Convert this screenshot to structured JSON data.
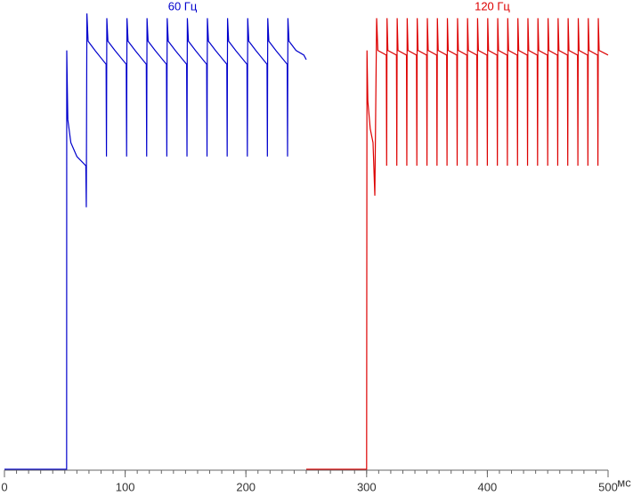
{
  "chart_data": {
    "type": "line",
    "xlabel": "мс",
    "xlim": [
      0,
      500
    ],
    "ylim": [
      0,
      100
    ],
    "xticks": [
      0,
      100,
      200,
      300,
      400,
      500
    ],
    "xminorticks": [
      0,
      10,
      20,
      30,
      40,
      50,
      60,
      70,
      80,
      90,
      100,
      110,
      120,
      130,
      140,
      150,
      160,
      170,
      180,
      190,
      200,
      210,
      220,
      230,
      240,
      250,
      260,
      270,
      280,
      290,
      300,
      310,
      320,
      330,
      340,
      350,
      360,
      370,
      380,
      390,
      400,
      410,
      420,
      430,
      440,
      450,
      460,
      470,
      480,
      490,
      500
    ],
    "series": [
      {
        "name": "60 Гц",
        "color": "#0000cc",
        "x": [
          0,
          51.5,
          51.6,
          52.5,
          55,
          60,
          67.4,
          67.8,
          68.3,
          69.3,
          75,
          84.2,
          84.5,
          84.8,
          85.7,
          91.5,
          100.9,
          101.2,
          101.5,
          102.4,
          108.2,
          117.5,
          117.8,
          118.1,
          119,
          124.8,
          134.2,
          134.5,
          134.8,
          135.7,
          141.5,
          150.9,
          151.2,
          151.5,
          152.4,
          158.2,
          167.5,
          167.8,
          168.1,
          169,
          174.8,
          184.2,
          184.5,
          184.8,
          185.7,
          191.5,
          200.9,
          201.2,
          201.5,
          202.4,
          208.2,
          217.5,
          217.8,
          218.1,
          219,
          224.8,
          234.2,
          234.5,
          234.8,
          235.7,
          241.5,
          248,
          250
        ],
        "values": [
          0.2,
          0.2,
          91,
          76,
          71,
          68,
          66,
          57,
          99,
          93,
          91,
          88,
          68,
          98,
          93,
          91,
          88,
          68,
          98,
          93,
          91,
          88,
          68,
          98,
          93,
          91,
          88,
          68,
          98,
          93,
          91,
          88,
          68,
          98,
          93,
          91,
          88,
          68,
          98,
          93,
          91,
          88,
          68,
          98,
          93,
          91,
          88,
          68,
          98,
          93,
          91,
          88,
          68,
          98,
          93,
          91,
          88,
          68,
          98,
          93,
          91,
          90,
          89
        ]
      },
      {
        "name": "120 Гц",
        "color": "#dd0000",
        "x": [
          250,
          300,
          300.3,
          301,
          303,
          305.3,
          306.8,
          308.3,
          309.3,
          316.3,
          316.6,
          316.9,
          317.6,
          324.7,
          325,
          325.3,
          326,
          333,
          333.3,
          333.6,
          334.3,
          341.3,
          341.6,
          341.9,
          342.6,
          349.7,
          350,
          350.3,
          351,
          358,
          358.3,
          358.6,
          359.3,
          366.3,
          366.6,
          366.9,
          367.6,
          374.7,
          375,
          375.3,
          376,
          383,
          383.3,
          383.6,
          384.3,
          391.3,
          391.6,
          391.9,
          392.6,
          399.7,
          400,
          400.3,
          401,
          408,
          408.3,
          408.6,
          409.3,
          416.3,
          416.6,
          416.9,
          417.6,
          424.7,
          425,
          425.3,
          426,
          433,
          433.3,
          433.6,
          434.3,
          441.3,
          441.6,
          441.9,
          442.6,
          449.7,
          450,
          450.3,
          451,
          458,
          458.3,
          458.6,
          459.3,
          466.3,
          466.6,
          466.9,
          467.6,
          474.7,
          475,
          475.3,
          476,
          483,
          483.3,
          483.6,
          484.3,
          491.3,
          491.6,
          491.9,
          492.6,
          500
        ],
        "values": [
          0.2,
          0.2,
          91,
          80,
          74,
          71,
          59.5,
          98,
          91,
          90,
          66,
          98,
          91,
          90,
          66,
          98,
          91,
          90,
          66,
          98,
          91,
          90,
          66,
          98,
          91,
          90,
          66,
          98,
          91,
          90,
          66,
          98,
          91,
          90,
          66,
          98,
          91,
          90,
          66,
          98,
          91,
          90,
          66,
          98,
          91,
          90,
          66,
          98,
          91,
          90,
          66,
          98,
          91,
          90,
          66,
          98,
          91,
          90,
          66,
          98,
          91,
          90,
          66,
          98,
          91,
          90,
          66,
          98,
          91,
          90,
          66,
          98,
          91,
          90,
          66,
          98,
          91,
          90,
          66,
          98,
          91,
          90,
          66,
          98,
          91,
          90,
          66,
          98,
          91,
          90,
          66,
          98,
          91,
          90,
          66,
          98,
          91,
          90
        ]
      }
    ]
  }
}
